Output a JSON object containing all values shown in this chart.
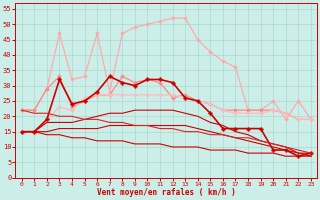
{
  "bg_color": "#cceee8",
  "grid_color": "#aad8d2",
  "xlabel": "Vent moyen/en rafales ( km/h )",
  "xlabel_color": "#cc0000",
  "tick_color": "#cc0000",
  "x_ticks": [
    0,
    1,
    2,
    3,
    4,
    5,
    6,
    7,
    8,
    9,
    10,
    11,
    12,
    13,
    14,
    15,
    16,
    17,
    18,
    19,
    20,
    21,
    22,
    23
  ],
  "ylim": [
    0,
    57
  ],
  "y_ticks": [
    0,
    5,
    10,
    15,
    20,
    25,
    30,
    35,
    40,
    45,
    50,
    55
  ],
  "series": [
    {
      "color": "#ffaaaa",
      "linewidth": 0.9,
      "marker": "D",
      "markersize": 1.8,
      "data": [
        22,
        22,
        29,
        47,
        32,
        33,
        47,
        28,
        47,
        49,
        50,
        51,
        52,
        52,
        45,
        41,
        38,
        36,
        22,
        22,
        25,
        19,
        25,
        19
      ]
    },
    {
      "color": "#ff8888",
      "linewidth": 0.9,
      "marker": "D",
      "markersize": 1.8,
      "data": [
        22,
        22,
        29,
        33,
        23,
        25,
        27,
        27,
        33,
        31,
        32,
        31,
        26,
        27,
        25,
        24,
        22,
        22,
        22,
        22,
        22,
        21,
        19,
        19
      ]
    },
    {
      "color": "#ffbbbb",
      "linewidth": 0.9,
      "marker": "D",
      "markersize": 1.8,
      "data": [
        15,
        15,
        19,
        23,
        22,
        26,
        27,
        27,
        27,
        27,
        27,
        27,
        27,
        26,
        25,
        24,
        22,
        21,
        21,
        21,
        22,
        21,
        19,
        19
      ]
    },
    {
      "color": "#cc0000",
      "linewidth": 1.2,
      "marker": "P",
      "markersize": 2.5,
      "data": [
        15,
        15,
        19,
        32,
        24,
        25,
        28,
        33,
        31,
        30,
        32,
        32,
        31,
        26,
        25,
        21,
        16,
        16,
        16,
        16,
        9,
        9,
        7,
        8
      ]
    },
    {
      "color": "#cc0000",
      "linewidth": 0.8,
      "marker": null,
      "markersize": 0,
      "data": [
        15,
        15,
        15,
        16,
        16,
        16,
        16,
        17,
        17,
        17,
        17,
        17,
        17,
        17,
        16,
        15,
        14,
        13,
        12,
        11,
        10,
        9,
        8,
        7
      ]
    },
    {
      "color": "#cc0000",
      "linewidth": 0.8,
      "marker": null,
      "markersize": 0,
      "data": [
        15,
        15,
        18,
        18,
        18,
        19,
        20,
        21,
        21,
        22,
        22,
        22,
        22,
        21,
        20,
        18,
        17,
        15,
        14,
        12,
        11,
        10,
        8,
        8
      ]
    },
    {
      "color": "#dd2222",
      "linewidth": 0.8,
      "marker": null,
      "markersize": 0,
      "data": [
        22,
        21,
        21,
        20,
        20,
        19,
        19,
        18,
        18,
        17,
        17,
        16,
        16,
        15,
        15,
        14,
        14,
        13,
        13,
        12,
        11,
        10,
        9,
        8
      ]
    },
    {
      "color": "#cc0000",
      "linewidth": 0.8,
      "marker": null,
      "markersize": 0,
      "data": [
        15,
        15,
        14,
        14,
        13,
        13,
        12,
        12,
        12,
        11,
        11,
        11,
        10,
        10,
        10,
        9,
        9,
        9,
        8,
        8,
        8,
        7,
        7,
        7
      ]
    }
  ]
}
